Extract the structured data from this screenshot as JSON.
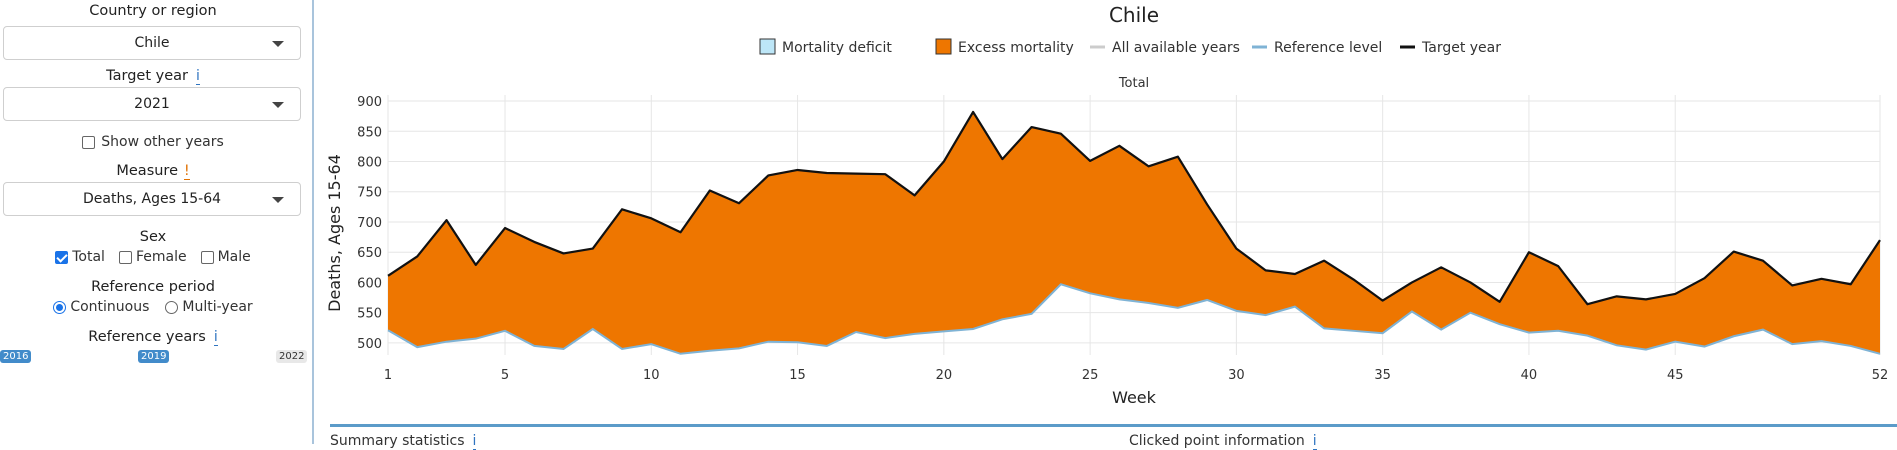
{
  "sidebar": {
    "country_label": "Country or region",
    "country_value": "Chile",
    "target_year_label": "Target year",
    "target_year_value": "2021",
    "show_other_years_label": "Show other years",
    "measure_label": "Measure",
    "measure_value": "Deaths, Ages 15-64",
    "sex_label": "Sex",
    "sex_options": [
      {
        "label": "Total",
        "checked": true
      },
      {
        "label": "Female",
        "checked": false
      },
      {
        "label": "Male",
        "checked": false
      }
    ],
    "reference_period_label": "Reference period",
    "reference_period_options": [
      {
        "label": "Continuous",
        "selected": true
      },
      {
        "label": "Multi-year",
        "selected": false
      }
    ],
    "reference_years_label": "Reference years",
    "slider": {
      "min_label": "2016",
      "value_label": "2019",
      "max_label": "2022"
    },
    "info_glyph": "i",
    "warn_glyph": "!"
  },
  "bottom": {
    "summary_label": "Summary statistics",
    "clicked_label": "Clicked point information"
  },
  "colors": {
    "excess": "#ee7600",
    "deficit": "#bde6f7",
    "reference": "#7fb3d5",
    "target": "#111111",
    "all_years": "#cccccc"
  },
  "chart_data": {
    "type": "area",
    "title": "Chile",
    "subtitle": "Total",
    "xlabel": "Week",
    "ylabel": "Deaths, Ages 15-64",
    "xlim": [
      1,
      52
    ],
    "ylim": [
      480,
      910
    ],
    "xticks": [
      1,
      5,
      10,
      15,
      20,
      25,
      30,
      35,
      40,
      45,
      52
    ],
    "yticks": [
      500,
      550,
      600,
      650,
      700,
      750,
      800,
      850,
      900
    ],
    "grid": true,
    "legend_position": "top",
    "legend": [
      {
        "label": "Mortality deficit",
        "kind": "box",
        "color": "#bde6f7"
      },
      {
        "label": "Excess mortality",
        "kind": "box",
        "color": "#ee7600"
      },
      {
        "label": "All available years",
        "kind": "line",
        "color": "#cccccc"
      },
      {
        "label": "Reference level",
        "kind": "line",
        "color": "#7fb3d5"
      },
      {
        "label": "Target year",
        "kind": "line",
        "color": "#111111"
      }
    ],
    "x": [
      1,
      2,
      3,
      4,
      5,
      6,
      7,
      8,
      9,
      10,
      11,
      12,
      13,
      14,
      15,
      16,
      17,
      18,
      19,
      20,
      21,
      22,
      23,
      24,
      25,
      26,
      27,
      28,
      29,
      30,
      31,
      32,
      33,
      34,
      35,
      36,
      37,
      38,
      39,
      40,
      41,
      42,
      43,
      44,
      45,
      46,
      47,
      48,
      49,
      50,
      51,
      52
    ],
    "series": [
      {
        "name": "Target year",
        "values": [
          611,
          643,
          703,
          629,
          690,
          667,
          648,
          656,
          721,
          706,
          683,
          752,
          731,
          777,
          786,
          781,
          780,
          779,
          744,
          800,
          882,
          804,
          857,
          846,
          801,
          826,
          792,
          808,
          729,
          656,
          620,
          614,
          636,
          605,
          570,
          600,
          625,
          600,
          568,
          650,
          627,
          564,
          577,
          572,
          581,
          607,
          651,
          636,
          595,
          606,
          597,
          670
        ]
      },
      {
        "name": "Reference level",
        "values": [
          521,
          493,
          502,
          507,
          520,
          495,
          490,
          523,
          490,
          498,
          482,
          487,
          491,
          502,
          501,
          495,
          518,
          508,
          515,
          519,
          523,
          539,
          548,
          597,
          582,
          572,
          566,
          558,
          571,
          553,
          546,
          560,
          524,
          520,
          516,
          552,
          522,
          550,
          531,
          517,
          520,
          512,
          496,
          489,
          502,
          494,
          511,
          522,
          498,
          503,
          495,
          482
        ]
      }
    ]
  }
}
